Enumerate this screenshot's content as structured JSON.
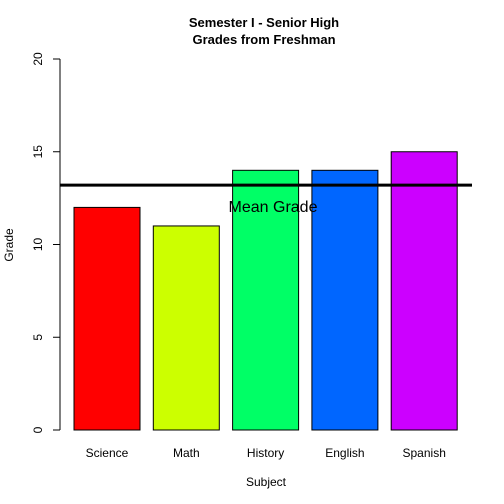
{
  "chart_data": {
    "type": "bar",
    "title_line1": "Semester I - Senior High",
    "title_line2": "Grades from Freshman",
    "xlabel": "Subject",
    "ylabel": "Grade",
    "ylim": [
      0,
      20
    ],
    "yticks": [
      0,
      5,
      10,
      15,
      20
    ],
    "categories": [
      "Science",
      "Math",
      "History",
      "English",
      "Spanish"
    ],
    "values": [
      12,
      11,
      14,
      14,
      15
    ],
    "colors": [
      "#FF0000",
      "#CCFF00",
      "#00FF66",
      "#0066FF",
      "#CC00FF"
    ],
    "mean_line": {
      "value": 13.2,
      "label": "Mean Grade",
      "color": "#000000"
    },
    "legend": "none",
    "grid": false
  }
}
